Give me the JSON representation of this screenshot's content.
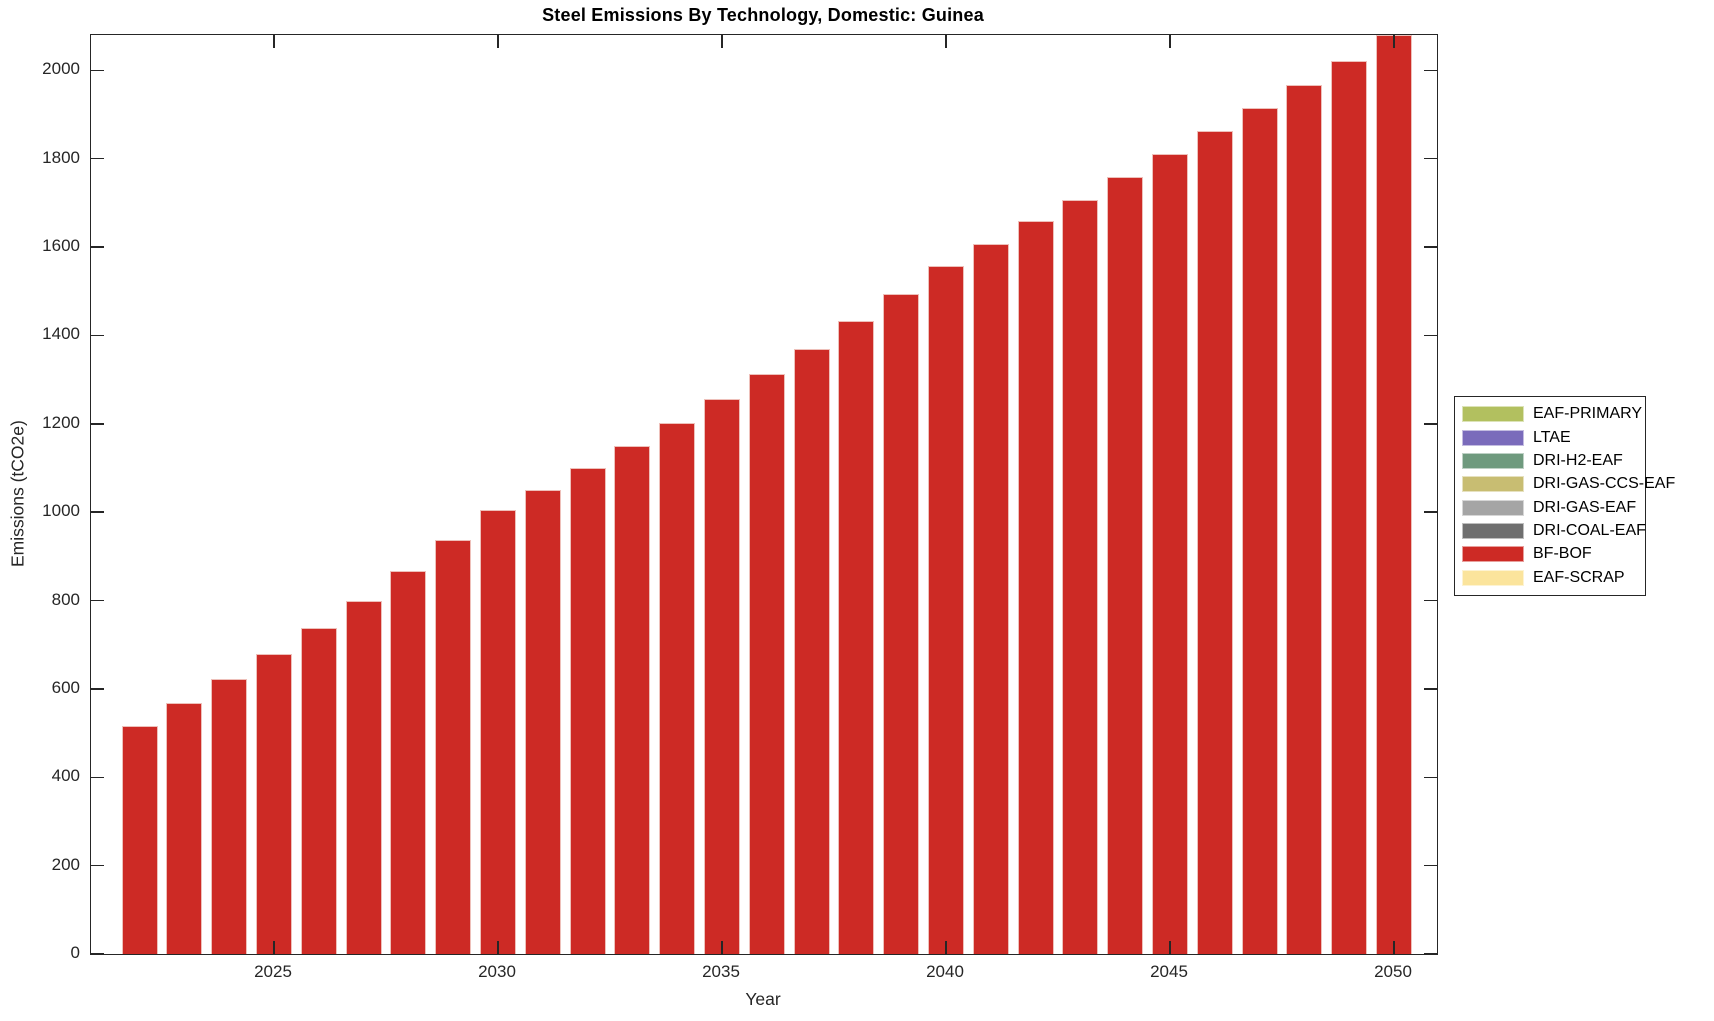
{
  "chart_data": {
    "type": "bar",
    "stacked": true,
    "title": "Steel Emissions By Technology, Domestic: Guinea",
    "xlabel": "Year",
    "ylabel": "Emissions (tCO2e)",
    "categories": [
      2022,
      2023,
      2024,
      2025,
      2026,
      2027,
      2028,
      2029,
      2030,
      2031,
      2032,
      2033,
      2034,
      2035,
      2036,
      2037,
      2038,
      2039,
      2040,
      2041,
      2042,
      2043,
      2044,
      2045,
      2046,
      2047,
      2048,
      2049,
      2050
    ],
    "series": [
      {
        "name": "BF-BOF",
        "color": "#cd2a25",
        "values": [
          516,
          568,
          622,
          680,
          737,
          800,
          866,
          936,
          1005,
          1051,
          1100,
          1150,
          1201,
          1256,
          1312,
          1370,
          1432,
          1494,
          1558,
          1606,
          1658,
          1706,
          1758,
          1810,
          1862,
          1915,
          1968,
          2022,
          2080
        ]
      }
    ],
    "legend": [
      {
        "label": "EAF-PRIMARY",
        "color": "#b2c05f"
      },
      {
        "label": "LTAE",
        "color": "#7a6bbb"
      },
      {
        "label": "DRI-H2-EAF",
        "color": "#6f9a7e"
      },
      {
        "label": "DRI-GAS-CCS-EAF",
        "color": "#c8bd72"
      },
      {
        "label": "DRI-GAS-EAF",
        "color": "#a5a5a5"
      },
      {
        "label": "DRI-COAL-EAF",
        "color": "#6f6f6f"
      },
      {
        "label": "BF-BOF",
        "color": "#cd2a25"
      },
      {
        "label": "EAF-SCRAP",
        "color": "#fbe49c"
      }
    ],
    "legend_position": "outside-right",
    "ylim": [
      0,
      2080
    ],
    "yticks": [
      0,
      200,
      400,
      600,
      800,
      1000,
      1200,
      1400,
      1600,
      1800,
      2000
    ],
    "xticks": [
      2025,
      2030,
      2035,
      2040,
      2045,
      2050
    ],
    "grid": false,
    "axis_color": "#262626",
    "bar_edge_color": "#eec0ba"
  }
}
